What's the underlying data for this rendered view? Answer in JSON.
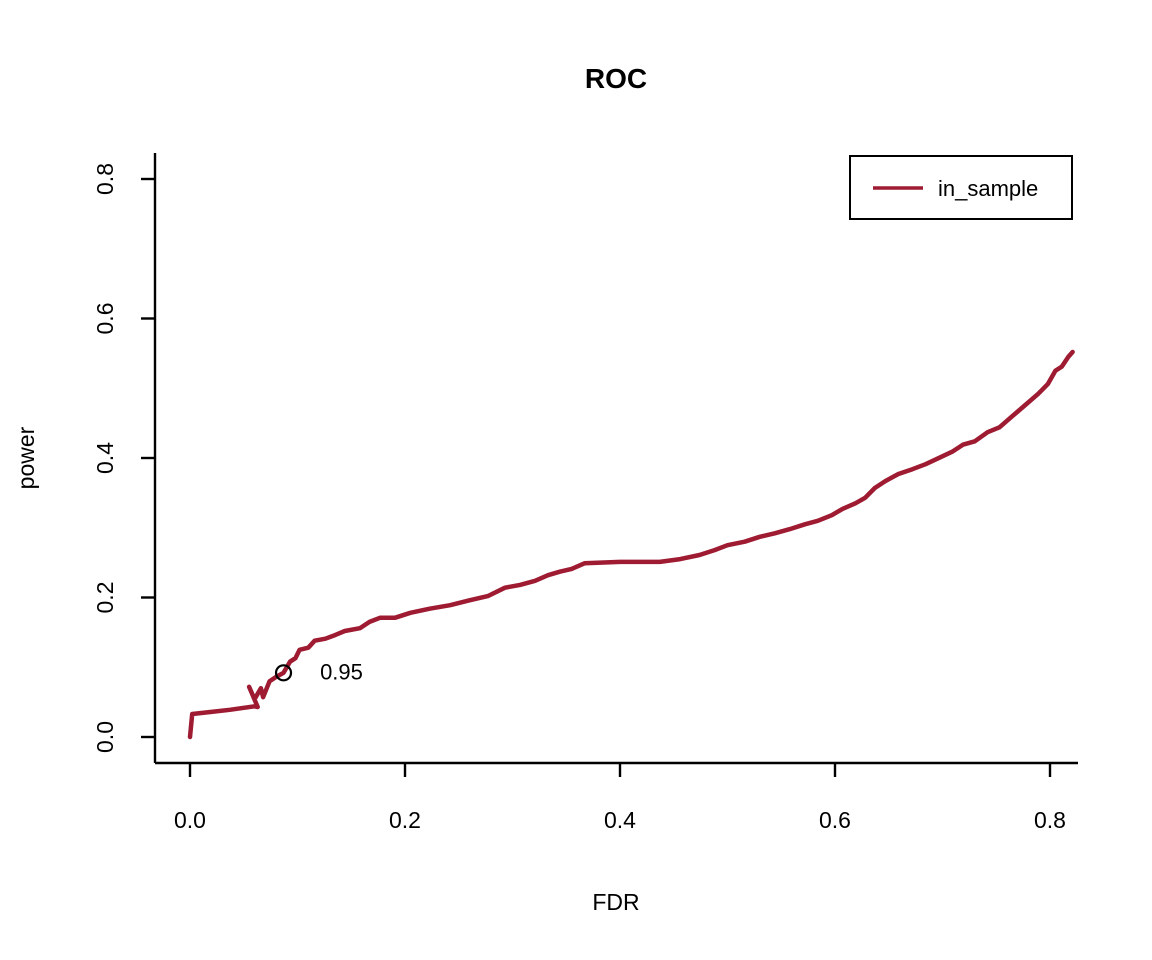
{
  "colors": {
    "background": "#FFFFFF",
    "axis": "#000000",
    "curve": "#9E1B32",
    "annotation": "#9E1B32",
    "marker_stroke": "#000000",
    "legend_border": "#000000"
  },
  "chart_data": {
    "type": "line",
    "title": "ROC",
    "xlabel": "FDR",
    "ylabel": "power",
    "xlim": [
      0.0,
      0.83
    ],
    "ylim": [
      0.0,
      0.83
    ],
    "grid": false,
    "legend_position": "top-right",
    "x_ticks": [
      {
        "v": 0.0,
        "label": "0.0"
      },
      {
        "v": 0.2,
        "label": "0.2"
      },
      {
        "v": 0.4,
        "label": "0.4"
      },
      {
        "v": 0.6,
        "label": "0.6"
      },
      {
        "v": 0.8,
        "label": "0.8"
      }
    ],
    "y_ticks": [
      {
        "v": 0.0,
        "label": "0.0"
      },
      {
        "v": 0.2,
        "label": "0.2"
      },
      {
        "v": 0.4,
        "label": "0.4"
      },
      {
        "v": 0.6,
        "label": "0.6"
      },
      {
        "v": 0.8,
        "label": "0.8"
      }
    ],
    "series": [
      {
        "name": "in_sample",
        "color": "#9E1B32",
        "points": [
          [
            0.0,
            0.0
          ],
          [
            0.002,
            0.033
          ],
          [
            0.02,
            0.036
          ],
          [
            0.037,
            0.039
          ],
          [
            0.06,
            0.044
          ],
          [
            0.063,
            0.043
          ],
          [
            0.055,
            0.072
          ],
          [
            0.06,
            0.054
          ],
          [
            0.066,
            0.07
          ],
          [
            0.068,
            0.057
          ],
          [
            0.074,
            0.08
          ],
          [
            0.08,
            0.086
          ],
          [
            0.087,
            0.092
          ],
          [
            0.093,
            0.108
          ],
          [
            0.098,
            0.113
          ],
          [
            0.102,
            0.125
          ],
          [
            0.11,
            0.128
          ],
          [
            0.116,
            0.138
          ],
          [
            0.126,
            0.141
          ],
          [
            0.133,
            0.145
          ],
          [
            0.144,
            0.152
          ],
          [
            0.158,
            0.156
          ],
          [
            0.167,
            0.165
          ],
          [
            0.177,
            0.171
          ],
          [
            0.191,
            0.171
          ],
          [
            0.205,
            0.178
          ],
          [
            0.223,
            0.184
          ],
          [
            0.242,
            0.189
          ],
          [
            0.26,
            0.196
          ],
          [
            0.277,
            0.202
          ],
          [
            0.293,
            0.214
          ],
          [
            0.307,
            0.218
          ],
          [
            0.321,
            0.224
          ],
          [
            0.333,
            0.232
          ],
          [
            0.344,
            0.237
          ],
          [
            0.355,
            0.241
          ],
          [
            0.367,
            0.249
          ],
          [
            0.4,
            0.251
          ],
          [
            0.437,
            0.251
          ],
          [
            0.456,
            0.255
          ],
          [
            0.474,
            0.261
          ],
          [
            0.488,
            0.268
          ],
          [
            0.5,
            0.275
          ],
          [
            0.516,
            0.28
          ],
          [
            0.53,
            0.287
          ],
          [
            0.544,
            0.292
          ],
          [
            0.558,
            0.298
          ],
          [
            0.572,
            0.305
          ],
          [
            0.584,
            0.31
          ],
          [
            0.597,
            0.318
          ],
          [
            0.607,
            0.327
          ],
          [
            0.619,
            0.335
          ],
          [
            0.628,
            0.343
          ],
          [
            0.637,
            0.357
          ],
          [
            0.647,
            0.367
          ],
          [
            0.659,
            0.377
          ],
          [
            0.672,
            0.384
          ],
          [
            0.684,
            0.391
          ],
          [
            0.698,
            0.401
          ],
          [
            0.709,
            0.409
          ],
          [
            0.719,
            0.419
          ],
          [
            0.73,
            0.424
          ],
          [
            0.742,
            0.437
          ],
          [
            0.753,
            0.444
          ],
          [
            0.765,
            0.46
          ],
          [
            0.777,
            0.476
          ],
          [
            0.789,
            0.492
          ],
          [
            0.798,
            0.506
          ],
          [
            0.805,
            0.525
          ],
          [
            0.811,
            0.531
          ],
          [
            0.817,
            0.545
          ],
          [
            0.821,
            0.552
          ]
        ]
      }
    ],
    "marker_point": {
      "x": 0.087,
      "y": 0.092,
      "label": "0.95",
      "label_x": 0.121,
      "label_y": 0.093
    }
  }
}
